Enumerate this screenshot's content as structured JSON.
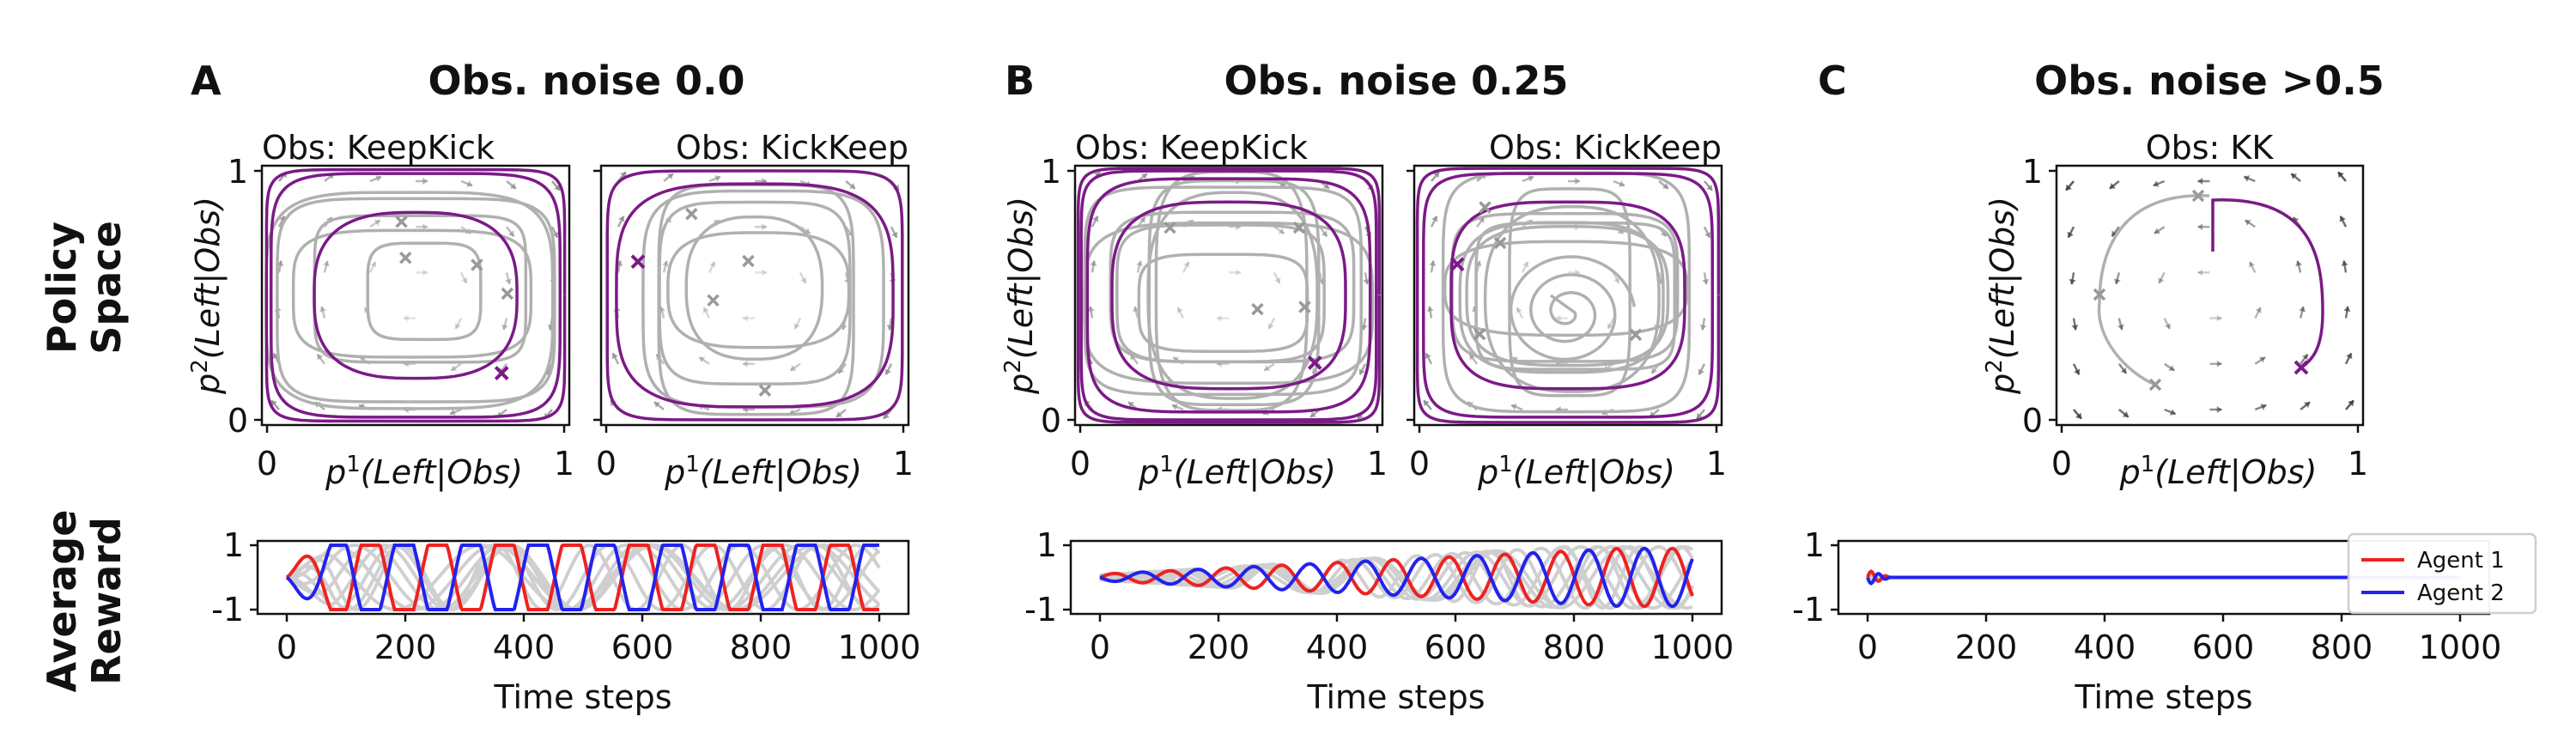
{
  "figure": {
    "row_labels": {
      "policy": [
        "Policy",
        "Space"
      ],
      "reward": [
        "Average",
        "Reward"
      ]
    },
    "panels": [
      {
        "letter": "A",
        "title": "Obs. noise 0.0",
        "subplots": [
          "Obs: KeepKick",
          "Obs: KickKeep"
        ]
      },
      {
        "letter": "B",
        "title": "Obs. noise 0.25",
        "subplots": [
          "Obs: KeepKick",
          "Obs: KickKeep"
        ]
      },
      {
        "letter": "C",
        "title": "Obs. noise >0.5",
        "subplots": [
          "Obs: KK"
        ]
      }
    ],
    "policy_axes": {
      "xlabel_base": "p",
      "xlabel_sup": "1",
      "xlabel_arg": "(Left|Obs)",
      "ylabel_base": "p",
      "ylabel_sup": "2",
      "ylabel_arg": "(Left|Obs)",
      "ticks": [
        "0",
        "1"
      ]
    },
    "reward_axes": {
      "xlabel": "Time steps",
      "xticks": [
        "0",
        "200",
        "400",
        "600",
        "800",
        "1000"
      ],
      "yticks": [
        "-1",
        "1"
      ]
    },
    "legend": [
      {
        "label": "Agent 1",
        "color": "#ee2222"
      },
      {
        "label": "Agent 2",
        "color": "#2222ee"
      }
    ],
    "colors": {
      "highlight": "#7b1a86",
      "gray": "#b0b0b0",
      "agent1": "#ee2222",
      "agent2": "#2222ee"
    }
  },
  "chart_data": [
    {
      "type": "line",
      "panel": "A",
      "title": "Obs: KeepKick",
      "xlabel": "p1(Left|Obs)",
      "ylabel": "p2(Left|Obs)",
      "xlim": [
        0,
        1
      ],
      "ylim": [
        0,
        1
      ],
      "description_kind": "phase-portrait cycles around center (0.5,0.5)"
    },
    {
      "type": "line",
      "panel": "A",
      "title": "Obs: KickKeep",
      "xlabel": "p1(Left|Obs)",
      "ylabel": "p2(Left|Obs)",
      "xlim": [
        0,
        1
      ],
      "ylim": [
        0,
        1
      ]
    },
    {
      "type": "line",
      "panel": "B",
      "title": "Obs: KeepKick",
      "xlabel": "p1(Left|Obs)",
      "ylabel": "p2(Left|Obs)",
      "xlim": [
        0,
        1
      ],
      "ylim": [
        0,
        1
      ]
    },
    {
      "type": "line",
      "panel": "B",
      "title": "Obs: KickKeep",
      "xlabel": "p1(Left|Obs)",
      "ylabel": "p2(Left|Obs)",
      "xlim": [
        0,
        1
      ],
      "ylim": [
        0,
        1
      ]
    },
    {
      "type": "line",
      "panel": "C",
      "title": "Obs: KK",
      "xlabel": "p1(Left|Obs)",
      "ylabel": "p2(Left|Obs)",
      "xlim": [
        0,
        1
      ],
      "ylim": [
        0,
        1
      ]
    },
    {
      "type": "line",
      "panel": "A",
      "xlabel": "Time steps",
      "ylabel": "Average Reward",
      "xlim": [
        0,
        1000
      ],
      "ylim": [
        -1,
        1
      ],
      "series": [
        {
          "name": "Agent 1",
          "x": [
            0,
            50,
            100,
            150,
            200,
            250,
            300,
            350,
            400,
            450,
            500,
            550,
            600,
            650,
            700,
            750,
            800,
            850,
            900,
            950,
            1000
          ],
          "y": [
            0,
            0.4,
            -0.7,
            0.9,
            -1,
            1,
            -1,
            1,
            -1,
            1,
            -1,
            1,
            -1,
            1,
            -1,
            1,
            -1,
            1,
            -1,
            1,
            1
          ]
        },
        {
          "name": "Agent 2",
          "x": [
            0,
            50,
            100,
            150,
            200,
            250,
            300,
            350,
            400,
            450,
            500,
            550,
            600,
            650,
            700,
            750,
            800,
            850,
            900,
            950,
            1000
          ],
          "y": [
            0,
            -0.4,
            0.7,
            -0.9,
            1,
            -1,
            1,
            -1,
            1,
            -1,
            1,
            -1,
            1,
            -1,
            1,
            -1,
            1,
            -1,
            1,
            -1,
            -1
          ]
        }
      ]
    },
    {
      "type": "line",
      "panel": "B",
      "xlabel": "Time steps",
      "ylabel": "Average Reward",
      "xlim": [
        0,
        1000
      ],
      "ylim": [
        -1,
        1
      ],
      "series": [
        {
          "name": "Agent 1",
          "x": [
            0,
            200,
            400,
            600,
            800,
            1000
          ],
          "y": [
            0,
            0.1,
            0.3,
            0.5,
            0.6,
            0.7
          ]
        },
        {
          "name": "Agent 2",
          "x": [
            0,
            200,
            400,
            600,
            800,
            1000
          ],
          "y": [
            0,
            -0.1,
            -0.3,
            -0.5,
            -0.6,
            -0.7
          ]
        }
      ]
    },
    {
      "type": "line",
      "panel": "C",
      "xlabel": "Time steps",
      "ylabel": "Average Reward",
      "xlim": [
        0,
        1000
      ],
      "ylim": [
        -1,
        1
      ],
      "series": [
        {
          "name": "Agent 1",
          "x": [
            0,
            10,
            20,
            30,
            40,
            100,
            1000
          ],
          "y": [
            0,
            0.15,
            -0.1,
            0.05,
            0,
            0,
            0
          ]
        },
        {
          "name": "Agent 2",
          "x": [
            0,
            10,
            20,
            30,
            40,
            100,
            1000
          ],
          "y": [
            0,
            -0.15,
            0.1,
            -0.05,
            0,
            0,
            0
          ]
        }
      ]
    }
  ]
}
